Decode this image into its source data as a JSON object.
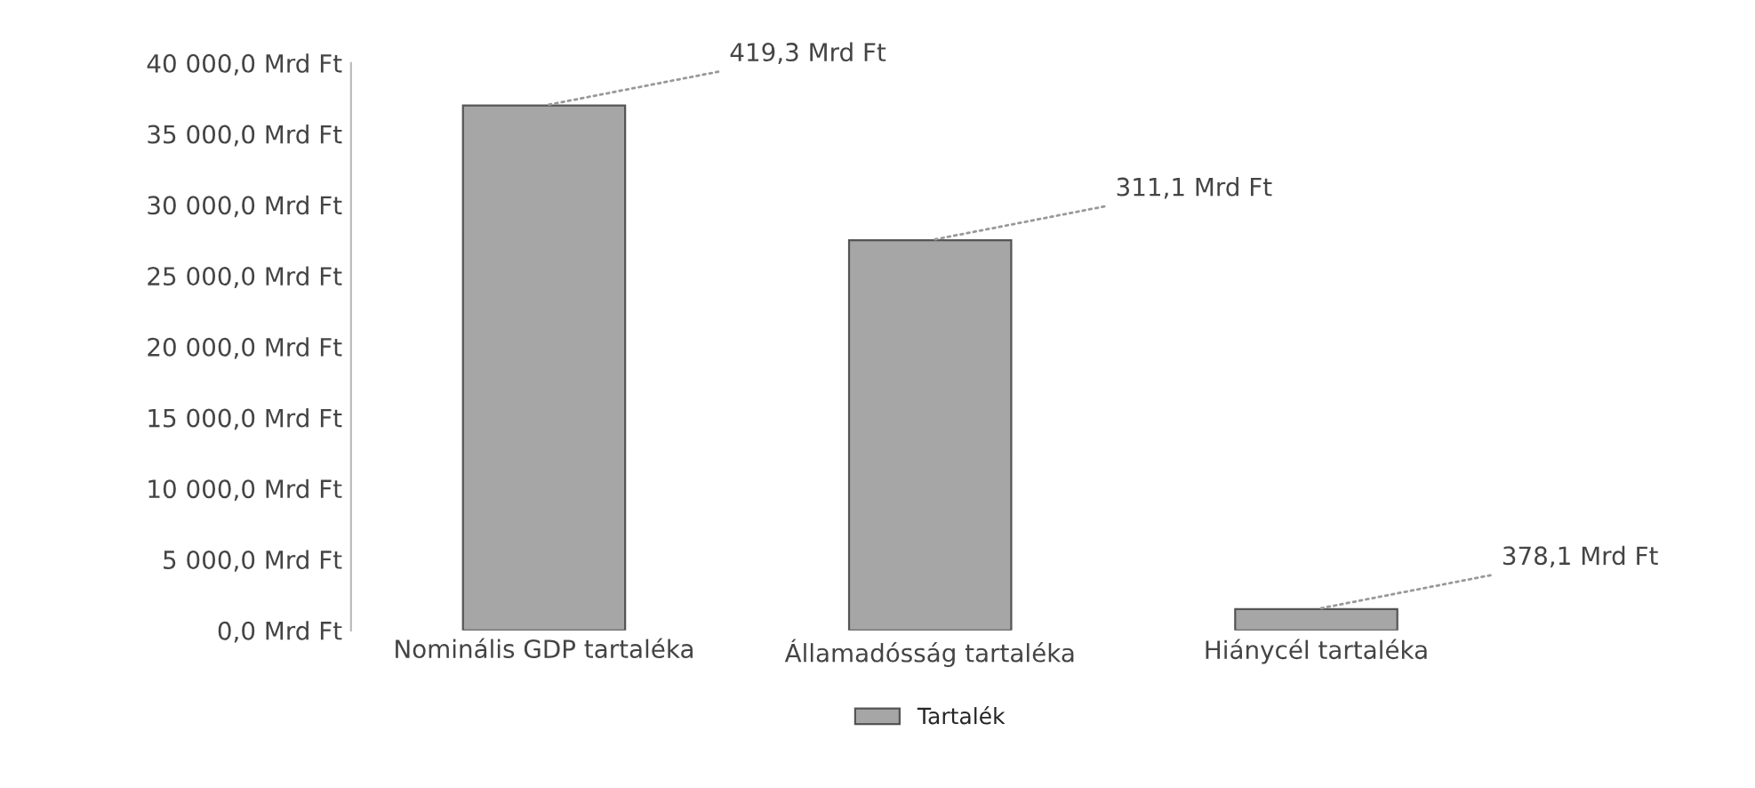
{
  "chart_data": {
    "type": "bar",
    "categories": [
      "Nominális GDP tartaléka",
      "Államadósság tartaléka",
      "Hiánycél tartaléka"
    ],
    "series": [
      {
        "name": "Tartalék",
        "color": "#a6a6a6",
        "values": [
          37000,
          27500,
          1500
        ]
      }
    ],
    "annotations": [
      {
        "text": "419,3 Mrd Ft",
        "x": "Nominális GDP tartaléka",
        "y": 37000
      },
      {
        "text": "311,1 Mrd Ft",
        "x": "Államadósság tartaléka",
        "y": 27500
      },
      {
        "text": "378,1 Mrd Ft",
        "x": "Hiánycél tartaléka",
        "y": 1500
      }
    ],
    "ylim": [
      0,
      40000
    ],
    "yticks": [
      {
        "value": 0,
        "label": "0,0 Mrd Ft"
      },
      {
        "value": 5000,
        "label": "5 000,0 Mrd Ft"
      },
      {
        "value": 10000,
        "label": "10 000,0 Mrd Ft"
      },
      {
        "value": 15000,
        "label": "15 000,0 Mrd Ft"
      },
      {
        "value": 20000,
        "label": "20 000,0 Mrd Ft"
      },
      {
        "value": 25000,
        "label": "25 000,0 Mrd Ft"
      },
      {
        "value": 30000,
        "label": "30 000,0 Mrd Ft"
      },
      {
        "value": 35000,
        "label": "35 000,0 Mrd Ft"
      },
      {
        "value": 40000,
        "label": "40 000,0 Mrd Ft"
      }
    ],
    "legend": "bottom"
  }
}
